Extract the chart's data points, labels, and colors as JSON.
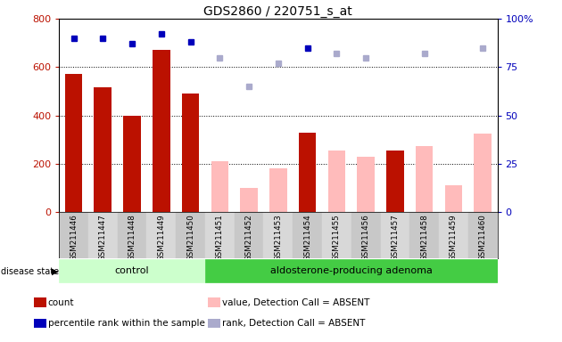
{
  "title": "GDS2860 / 220751_s_at",
  "samples": [
    "GSM211446",
    "GSM211447",
    "GSM211448",
    "GSM211449",
    "GSM211450",
    "GSM211451",
    "GSM211452",
    "GSM211453",
    "GSM211454",
    "GSM211455",
    "GSM211456",
    "GSM211457",
    "GSM211458",
    "GSM211459",
    "GSM211460"
  ],
  "count_values": [
    570,
    515,
    400,
    670,
    490,
    null,
    null,
    null,
    330,
    null,
    null,
    255,
    null,
    null,
    null
  ],
  "count_absent_values": [
    null,
    null,
    null,
    null,
    null,
    210,
    100,
    180,
    null,
    255,
    230,
    null,
    275,
    110,
    325
  ],
  "rank_present": [
    90,
    90,
    87,
    92,
    88,
    null,
    null,
    null,
    85,
    null,
    null,
    null,
    null,
    null,
    null
  ],
  "rank_absent_vals": [
    null,
    null,
    null,
    null,
    null,
    80,
    null,
    77,
    null,
    82,
    80,
    null,
    82,
    null,
    85
  ],
  "rank_absent_light": [
    null,
    null,
    null,
    null,
    null,
    80,
    65,
    77,
    null,
    82,
    80,
    null,
    82,
    null,
    85
  ],
  "groups": {
    "control": [
      0,
      1,
      2,
      3,
      4
    ],
    "adenoma": [
      5,
      6,
      7,
      8,
      9,
      10,
      11,
      12,
      13,
      14
    ]
  },
  "group_labels": [
    "control",
    "aldosterone-producing adenoma"
  ],
  "ylim_left": [
    0,
    800
  ],
  "ylim_right": [
    0,
    100
  ],
  "yticks_left": [
    0,
    200,
    400,
    600,
    800
  ],
  "yticks_right": [
    0,
    25,
    50,
    75,
    100
  ],
  "bar_color_present": "#bb1100",
  "bar_color_absent": "#ffbbbb",
  "dot_color_present": "#0000bb",
  "dot_color_absent": "#aaaacc",
  "group_bg_control": "#ccffcc",
  "group_bg_adenoma": "#44cc44",
  "tick_area_bg": "#cccccc"
}
